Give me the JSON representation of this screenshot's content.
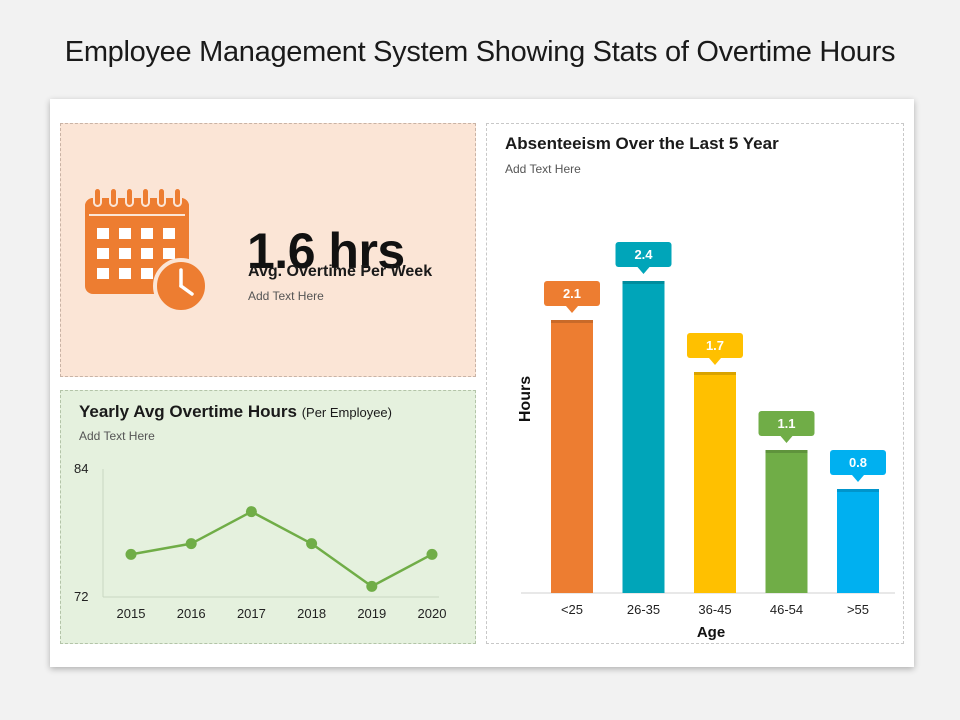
{
  "page": {
    "title": "Employee Management System Showing Stats of Overtime Hours"
  },
  "kpi": {
    "value": "1.6 hrs",
    "label": "Avg. Overtime Per Week",
    "subtext": "Add Text Here",
    "icon": "calendar-clock-icon",
    "color": "#ed7d31"
  },
  "line_panel": {
    "title": "Yearly Avg Overtime Hours",
    "title_suffix": "(Per Employee)",
    "subtext": "Add Text Here"
  },
  "bar_panel": {
    "title": "Absenteeism Over the Last 5 Year",
    "subtext": "Add Text Here"
  },
  "chart_data": [
    {
      "type": "line",
      "x": [
        "2015",
        "2016",
        "2017",
        "2018",
        "2019",
        "2020"
      ],
      "y": [
        76,
        77,
        80,
        77,
        73,
        76
      ],
      "ylim": [
        72,
        84
      ],
      "yticks": [
        "84",
        "72"
      ],
      "color": "#70ad47",
      "xlabel": "",
      "ylabel": ""
    },
    {
      "type": "bar",
      "categories": [
        "<25",
        "26-35",
        "36-45",
        "46-54",
        ">55"
      ],
      "values": [
        2.1,
        2.4,
        1.7,
        1.1,
        0.8
      ],
      "data_labels": [
        "2.1",
        "2.4",
        "1.7",
        "1.1",
        "0.8"
      ],
      "colors": [
        "#ed7d31",
        "#00a5b9",
        "#ffc000",
        "#70ad47",
        "#00b0f0"
      ],
      "ylim": [
        0,
        2.8
      ],
      "xlabel": "Age",
      "ylabel": "Hours"
    }
  ]
}
